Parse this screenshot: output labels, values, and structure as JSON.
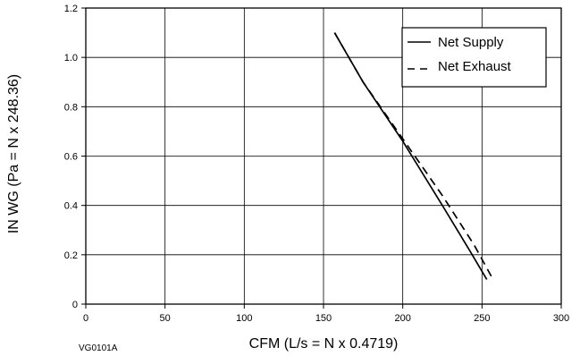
{
  "chart_data": {
    "type": "line",
    "title": "",
    "xlabel": "CFM (L/s = N x 0.4719)",
    "ylabel": "IN WG (Pa = N x 248.36)",
    "xlim": [
      0,
      300
    ],
    "ylim": [
      0,
      1.2
    ],
    "x_ticks": [
      0,
      50,
      100,
      150,
      200,
      250,
      300
    ],
    "y_ticks": [
      0,
      0.2,
      0.4,
      0.6,
      0.8,
      1.0,
      1.2
    ],
    "x_tick_labels": [
      "0",
      "50",
      "100",
      "150",
      "200",
      "250",
      "300"
    ],
    "y_tick_labels": [
      "0",
      "0.2",
      "0.4",
      "0.6",
      "0.8",
      "1.0",
      "1.2"
    ],
    "grid": true,
    "legend_position": "top-right",
    "series": [
      {
        "name": "Net Supply",
        "style": "solid",
        "color": "#000000",
        "points": [
          [
            157,
            1.1
          ],
          [
            175,
            0.9
          ],
          [
            200,
            0.66
          ],
          [
            225,
            0.4
          ],
          [
            242,
            0.22
          ],
          [
            253,
            0.1
          ]
        ]
      },
      {
        "name": "Net Exhaust",
        "style": "dashed",
        "color": "#000000",
        "points": [
          [
            157,
            1.1
          ],
          [
            175,
            0.9
          ],
          [
            200,
            0.67
          ],
          [
            225,
            0.44
          ],
          [
            245,
            0.24
          ],
          [
            257,
            0.1
          ]
        ]
      }
    ]
  },
  "figure_id": "VG0101A"
}
